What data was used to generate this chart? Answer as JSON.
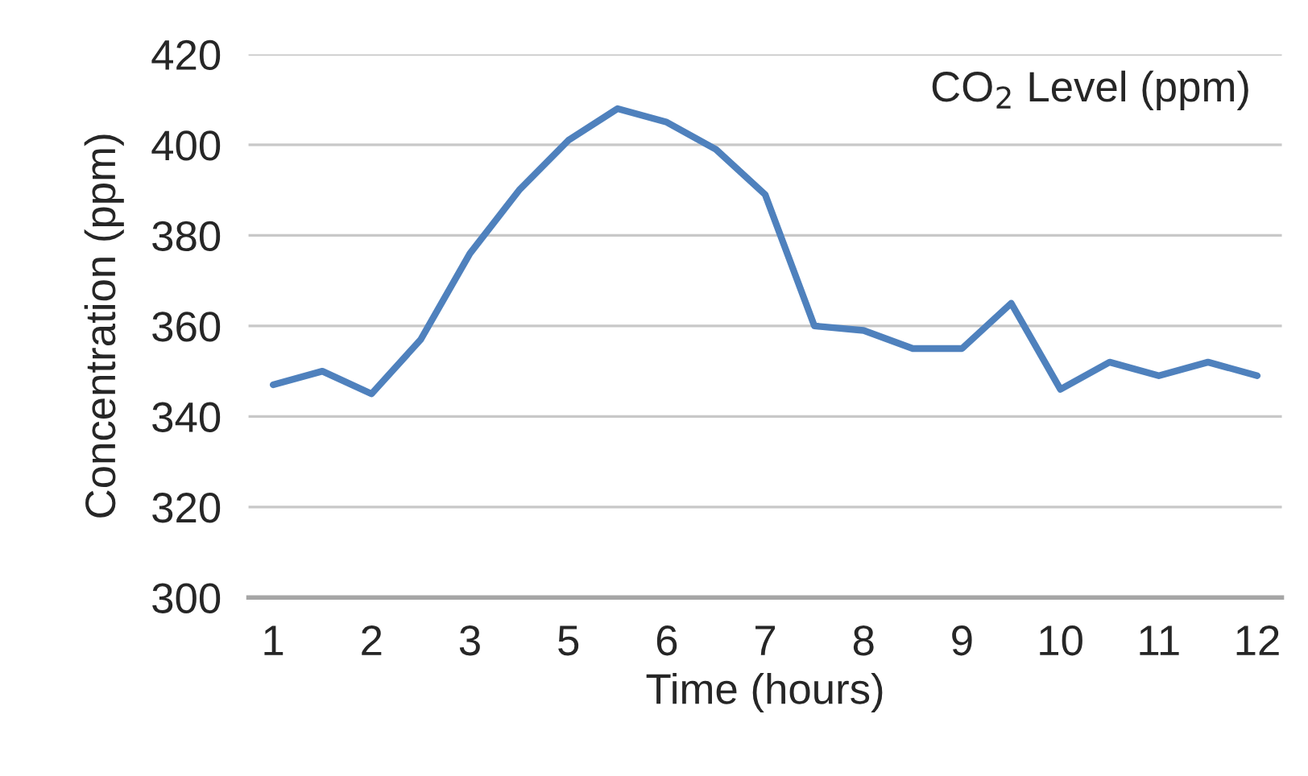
{
  "chart_data": {
    "type": "line",
    "title": "CO$_{2}$ Level (ppm)",
    "xlabel": "Time (hours)",
    "ylabel": "Concentration (ppm)",
    "categories": [
      "1",
      null,
      "2",
      null,
      "3",
      null,
      "5",
      null,
      "6",
      null,
      "7",
      null,
      "8",
      null,
      "9",
      null,
      "10",
      null,
      "11",
      null,
      "12"
    ],
    "series": [
      {
        "color": "#4f81bd",
        "values": [
          347,
          350,
          345,
          357,
          376,
          390,
          401,
          408,
          405,
          399,
          389,
          360,
          359,
          355,
          355,
          365,
          346,
          352,
          349,
          352,
          349
        ]
      }
    ],
    "ylim": [
      300,
      420
    ],
    "yticks": [
      300,
      320,
      340,
      360,
      380,
      400,
      420
    ],
    "grid": "y",
    "legend": false,
    "marker": "none",
    "line_style": "solid"
  }
}
